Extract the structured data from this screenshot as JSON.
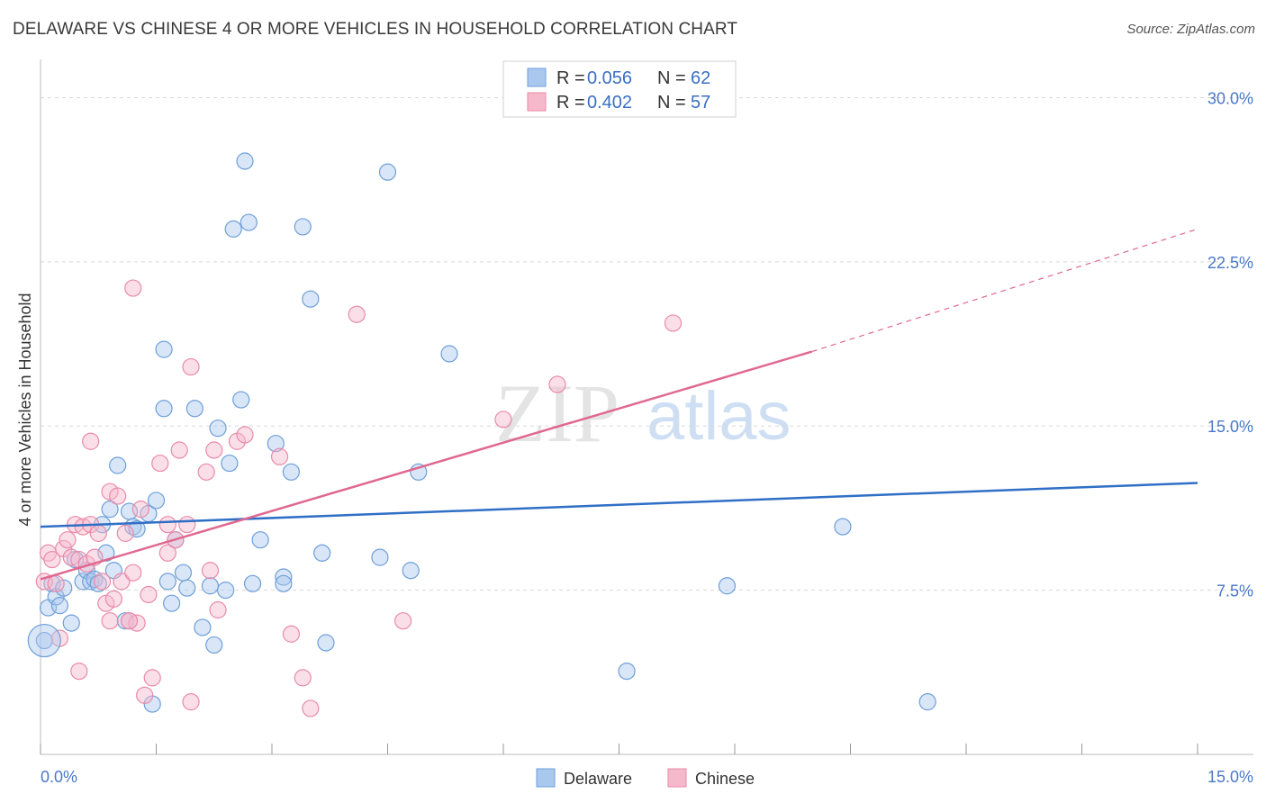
{
  "header": {
    "title": "DELAWARE VS CHINESE 4 OR MORE VEHICLES IN HOUSEHOLD CORRELATION CHART",
    "source": "Source: ZipAtlas.com"
  },
  "legend": {
    "rows": [
      {
        "r_label": "R = ",
        "r_value": "0.056",
        "n_label": "N = ",
        "n_value": "62"
      },
      {
        "r_label": "R = ",
        "r_value": "0.402",
        "n_label": "N = ",
        "n_value": "57"
      }
    ]
  },
  "bottom_legend": {
    "delaware": "Delaware",
    "chinese": "Chinese"
  },
  "watermark": {
    "zip": "ZIP",
    "atlas": "atlas"
  },
  "colors": {
    "delaware_fill": "#aac8ee",
    "delaware_stroke": "#6e9fd8",
    "delaware_line": "#2f6fc6",
    "chinese_fill": "#f6b9cc",
    "chinese_stroke": "#e98aa9",
    "chinese_line": "#e0688f",
    "grid": "#d8d8d8",
    "axis_text": "#4a78c8"
  },
  "chart_data": {
    "type": "scatter",
    "title": "DELAWARE VS CHINESE 4 OR MORE VEHICLES IN HOUSEHOLD CORRELATION CHART",
    "xlabel": "",
    "ylabel": "4 or more Vehicles in Household",
    "xlim": [
      0,
      15
    ],
    "ylim": [
      0,
      31.5
    ],
    "x_tick_labels": [
      "0.0%",
      "15.0%"
    ],
    "y_ticks": [
      7.5,
      15.0,
      22.5,
      30.0
    ],
    "y_tick_labels": [
      "7.5%",
      "15.0%",
      "22.5%",
      "30.0%"
    ],
    "series": [
      {
        "name": "Delaware",
        "r": 0.056,
        "n": 62,
        "trend": {
          "x0": 0,
          "y0": 10.4,
          "x1": 15,
          "y1": 12.4
        },
        "points": [
          [
            0.05,
            5.2
          ],
          [
            0.1,
            6.7
          ],
          [
            0.15,
            7.8
          ],
          [
            0.2,
            7.2
          ],
          [
            0.25,
            6.8
          ],
          [
            0.3,
            7.6
          ],
          [
            0.4,
            6.0
          ],
          [
            0.45,
            8.9
          ],
          [
            0.55,
            7.9
          ],
          [
            0.6,
            8.4
          ],
          [
            0.65,
            7.9
          ],
          [
            0.7,
            8.0
          ],
          [
            0.75,
            7.8
          ],
          [
            0.8,
            10.5
          ],
          [
            0.85,
            9.2
          ],
          [
            0.9,
            11.2
          ],
          [
            0.95,
            8.4
          ],
          [
            1.0,
            13.2
          ],
          [
            1.1,
            6.1
          ],
          [
            1.15,
            11.1
          ],
          [
            1.2,
            10.4
          ],
          [
            1.25,
            10.3
          ],
          [
            1.4,
            11.0
          ],
          [
            1.45,
            2.3
          ],
          [
            1.5,
            11.6
          ],
          [
            1.6,
            18.5
          ],
          [
            1.6,
            15.8
          ],
          [
            1.65,
            7.9
          ],
          [
            1.7,
            6.9
          ],
          [
            1.75,
            9.8
          ],
          [
            1.85,
            8.3
          ],
          [
            1.9,
            7.6
          ],
          [
            2.0,
            15.8
          ],
          [
            2.1,
            5.8
          ],
          [
            2.2,
            7.7
          ],
          [
            2.25,
            5.0
          ],
          [
            2.3,
            14.9
          ],
          [
            2.4,
            7.5
          ],
          [
            2.45,
            13.3
          ],
          [
            2.5,
            24.0
          ],
          [
            2.6,
            16.2
          ],
          [
            2.65,
            27.1
          ],
          [
            2.7,
            24.3
          ],
          [
            2.75,
            7.8
          ],
          [
            2.85,
            9.8
          ],
          [
            3.05,
            14.2
          ],
          [
            3.15,
            8.1
          ],
          [
            3.15,
            7.8
          ],
          [
            3.25,
            12.9
          ],
          [
            3.4,
            24.1
          ],
          [
            3.5,
            20.8
          ],
          [
            3.65,
            9.2
          ],
          [
            3.7,
            5.1
          ],
          [
            4.4,
            9.0
          ],
          [
            4.5,
            26.6
          ],
          [
            4.8,
            8.4
          ],
          [
            4.9,
            12.9
          ],
          [
            5.3,
            18.3
          ],
          [
            7.6,
            3.8
          ],
          [
            8.9,
            7.7
          ],
          [
            10.4,
            10.4
          ],
          [
            11.5,
            2.4
          ]
        ]
      },
      {
        "name": "Chinese",
        "r": 0.402,
        "n": 57,
        "trend": {
          "x0": 0,
          "y0": 8.0,
          "x1": 10.0,
          "y1": 18.4
        },
        "trend_extension": {
          "x0": 10.0,
          "y0": 18.4,
          "x1": 15,
          "y1": 24.0
        },
        "points": [
          [
            0.05,
            7.9
          ],
          [
            0.1,
            9.2
          ],
          [
            0.15,
            8.9
          ],
          [
            0.2,
            7.8
          ],
          [
            0.25,
            5.3
          ],
          [
            0.3,
            9.4
          ],
          [
            0.35,
            9.8
          ],
          [
            0.4,
            9.0
          ],
          [
            0.45,
            10.5
          ],
          [
            0.5,
            8.9
          ],
          [
            0.5,
            3.8
          ],
          [
            0.55,
            10.4
          ],
          [
            0.6,
            8.7
          ],
          [
            0.65,
            10.5
          ],
          [
            0.65,
            14.3
          ],
          [
            0.7,
            9.0
          ],
          [
            0.75,
            10.1
          ],
          [
            0.8,
            7.9
          ],
          [
            0.85,
            6.9
          ],
          [
            0.9,
            6.1
          ],
          [
            0.9,
            12.0
          ],
          [
            0.95,
            7.1
          ],
          [
            1.0,
            11.8
          ],
          [
            1.05,
            7.9
          ],
          [
            1.1,
            10.1
          ],
          [
            1.15,
            6.1
          ],
          [
            1.2,
            8.3
          ],
          [
            1.2,
            21.3
          ],
          [
            1.25,
            6.0
          ],
          [
            1.3,
            11.2
          ],
          [
            1.35,
            2.7
          ],
          [
            1.4,
            7.3
          ],
          [
            1.45,
            3.5
          ],
          [
            1.55,
            13.3
          ],
          [
            1.65,
            9.2
          ],
          [
            1.65,
            10.5
          ],
          [
            1.75,
            9.8
          ],
          [
            1.8,
            13.9
          ],
          [
            1.9,
            10.5
          ],
          [
            1.95,
            2.4
          ],
          [
            1.95,
            17.7
          ],
          [
            2.15,
            12.9
          ],
          [
            2.2,
            8.4
          ],
          [
            2.25,
            13.9
          ],
          [
            2.3,
            6.6
          ],
          [
            2.55,
            14.3
          ],
          [
            2.65,
            14.6
          ],
          [
            3.1,
            13.6
          ],
          [
            3.25,
            5.5
          ],
          [
            3.4,
            3.5
          ],
          [
            3.5,
            2.1
          ],
          [
            4.1,
            20.1
          ],
          [
            4.7,
            6.1
          ],
          [
            6.0,
            15.3
          ],
          [
            6.7,
            16.9
          ],
          [
            8.2,
            19.7
          ],
          [
            1.15,
            6.1
          ]
        ]
      }
    ]
  }
}
